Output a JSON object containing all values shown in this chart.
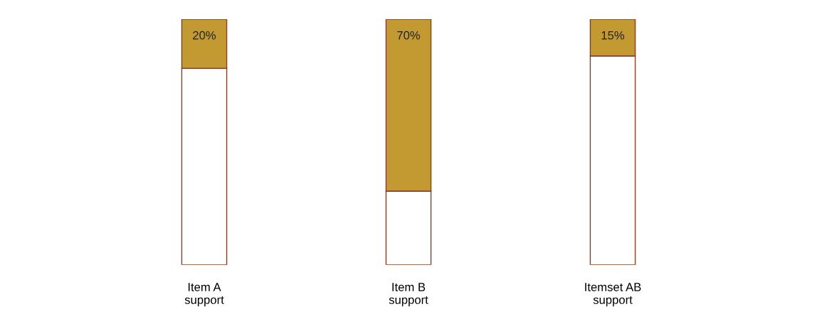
{
  "chart_data": {
    "type": "bar",
    "stacked": true,
    "categories": [
      "Item A\nsupport",
      "Item B\nsupport",
      "Itemset AB\nsupport"
    ],
    "series": [
      {
        "color": "#ffffff",
        "values": [
          80,
          30,
          85
        ]
      },
      {
        "color": "#c39a32",
        "values": [
          20,
          70,
          15
        ],
        "value_labels": [
          "20%",
          "70%",
          "15%"
        ]
      }
    ],
    "grid": false,
    "legend": false
  }
}
